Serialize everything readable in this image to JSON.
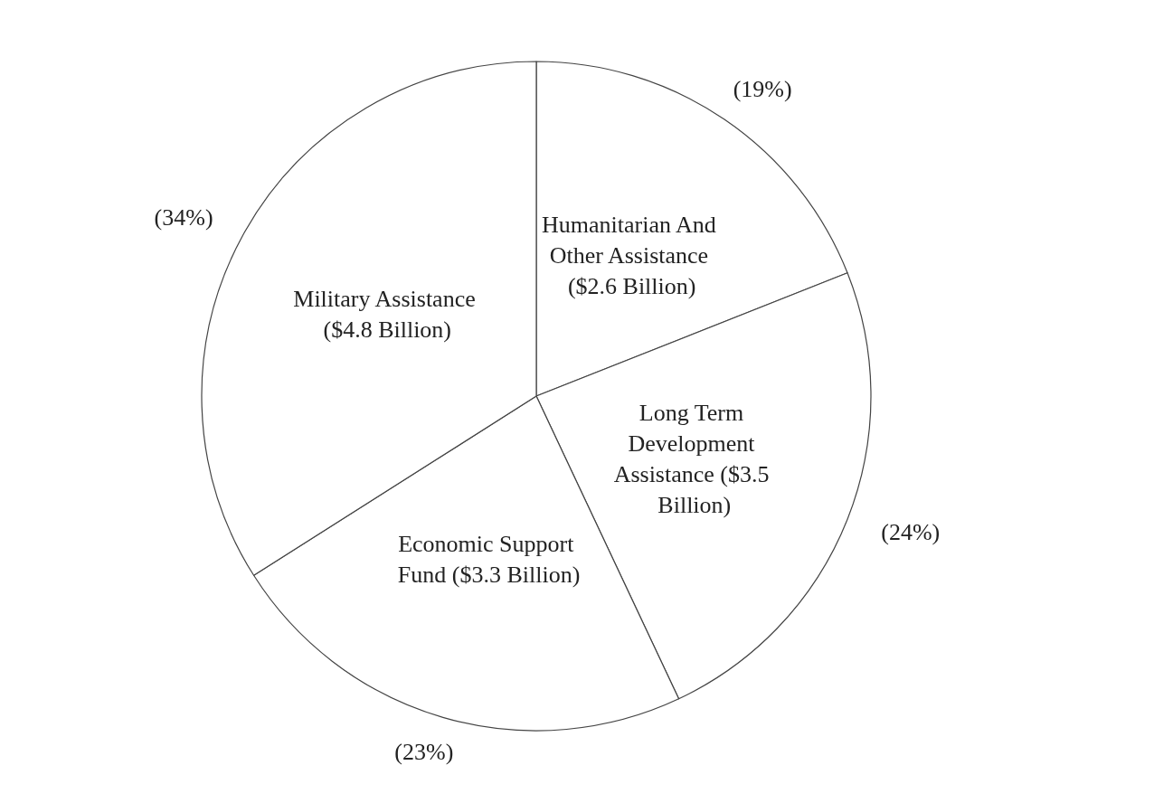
{
  "chart_data": {
    "type": "pie",
    "categories": [
      "Humanitarian And Other Assistance ($2.6 Billion)",
      "Long Term Development Assistance ($3.5 Billion)",
      "Economic Support Fund ($3.3 Billion)",
      "Military Assistance ($4.8 Billion)"
    ],
    "values": [
      19,
      24,
      23,
      34
    ],
    "value_labels": [
      "(19%)",
      "(24%)",
      "(23%)",
      "(34%)"
    ],
    "colors": [
      "#ffffff",
      "#ffffff",
      "#ffffff",
      "#ffffff"
    ],
    "legend": false
  }
}
